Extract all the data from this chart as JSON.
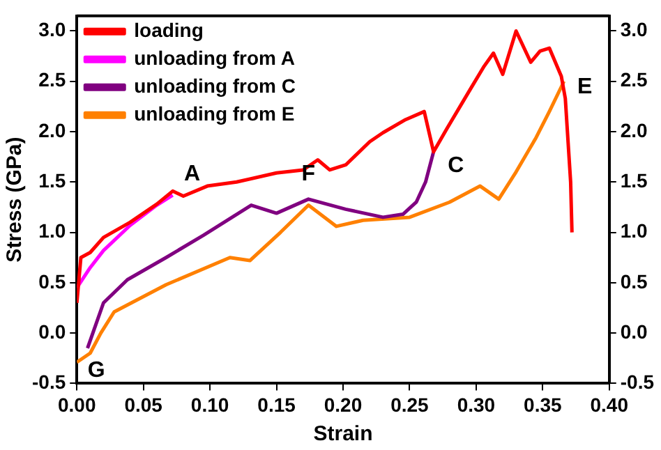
{
  "chart_data": {
    "type": "line",
    "xlabel": "Strain",
    "ylabel": "Stress (GPa)",
    "xlim": [
      0,
      0.4
    ],
    "xticks": [
      {
        "value": 0,
        "label": "0.00"
      },
      0.05,
      {
        "value": 0.1,
        "label": "0.10"
      },
      0.15,
      {
        "value": 0.2,
        "label": "0.20"
      },
      0.25,
      {
        "value": 0.3,
        "label": "0.30"
      },
      0.35,
      {
        "value": 0.4,
        "label": "0.40"
      }
    ],
    "ylim": [
      -0.5,
      3.15
    ],
    "yticks": [
      -0.5,
      {
        "value": 0,
        "label": "0.0"
      },
      0.5,
      {
        "value": 1,
        "label": "1.0"
      },
      1.5,
      {
        "value": 2,
        "label": "2.0"
      },
      2.5,
      {
        "value": 3,
        "label": "3.0"
      }
    ],
    "y2lim": [
      -0.5,
      3.15
    ],
    "y2ticks": [
      -0.5,
      {
        "value": 0,
        "label": "0.0"
      },
      0.5,
      {
        "value": 1,
        "label": "1.0"
      },
      1.5,
      {
        "value": 2,
        "label": "2.0"
      },
      2.5,
      {
        "value": 3,
        "label": "3.0"
      }
    ],
    "grid": false,
    "legend": "top left",
    "marker": "none",
    "line_style": "solid",
    "series": [
      {
        "name": "loading",
        "color": "#ff0000",
        "x": [
          0,
          0.003,
          0.01,
          0.02,
          0.04,
          0.06,
          0.072,
          0.08,
          0.098,
          0.12,
          0.15,
          0.17,
          0.181,
          0.19,
          0.202,
          0.22,
          0.23,
          0.247,
          0.261,
          0.268,
          0.278,
          0.296,
          0.306,
          0.313,
          0.32,
          0.33,
          0.341,
          0.348,
          0.355,
          0.364,
          0.367,
          0.371,
          0.372
        ],
        "values": [
          0.3,
          0.75,
          0.8,
          0.95,
          1.1,
          1.28,
          1.41,
          1.36,
          1.46,
          1.5,
          1.59,
          1.62,
          1.72,
          1.62,
          1.67,
          1.9,
          1.99,
          2.12,
          2.2,
          1.8,
          2.03,
          2.43,
          2.65,
          2.78,
          2.57,
          3.0,
          2.69,
          2.8,
          2.83,
          2.55,
          2.33,
          1.5,
          1.0
        ]
      },
      {
        "name": "unloading from A",
        "color": "#ff00ff",
        "x": [
          0,
          0.01,
          0.02,
          0.04,
          0.06,
          0.072
        ],
        "values": [
          0.45,
          0.65,
          0.82,
          1.07,
          1.27,
          1.37
        ]
      },
      {
        "name": "unloading from C",
        "color": "#800080",
        "x": [
          0.008,
          0.012,
          0.02,
          0.038,
          0.067,
          0.095,
          0.131,
          0.15,
          0.174,
          0.202,
          0.23,
          0.245,
          0.255,
          0.262,
          0.268
        ],
        "values": [
          -0.15,
          0.0,
          0.3,
          0.53,
          0.75,
          0.97,
          1.27,
          1.19,
          1.33,
          1.23,
          1.15,
          1.18,
          1.3,
          1.5,
          1.8
        ]
      },
      {
        "name": "unloading from E",
        "color": "#ff8000",
        "x": [
          0,
          0.01,
          0.018,
          0.028,
          0.067,
          0.115,
          0.13,
          0.153,
          0.174,
          0.195,
          0.215,
          0.25,
          0.28,
          0.303,
          0.317,
          0.33,
          0.345,
          0.355,
          0.366
        ],
        "values": [
          -0.29,
          -0.2,
          0.0,
          0.21,
          0.48,
          0.75,
          0.72,
          1.0,
          1.27,
          1.06,
          1.12,
          1.15,
          1.3,
          1.46,
          1.33,
          1.6,
          1.94,
          2.2,
          2.5
        ]
      }
    ],
    "annotations": [
      {
        "text": "A",
        "x": 0.072,
        "y": 1.41
      },
      {
        "text": "C",
        "x": 0.268,
        "y": 1.8
      },
      {
        "text": "E",
        "x": 0.367,
        "y": 2.5
      },
      {
        "text": "F",
        "x": 0.174,
        "y": 1.33
      },
      {
        "text": "G",
        "x": 0,
        "y": -0.29
      }
    ]
  }
}
